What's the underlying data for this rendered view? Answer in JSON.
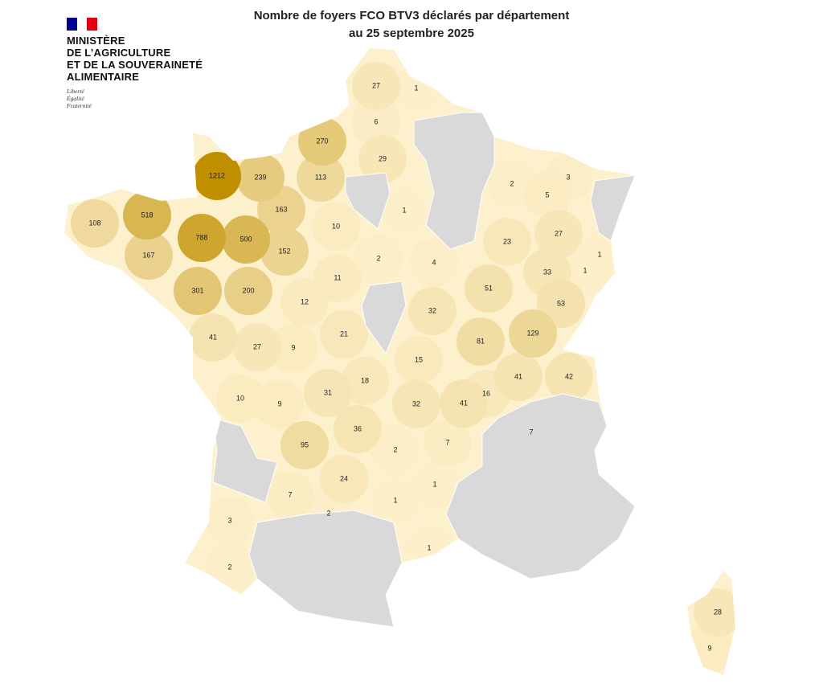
{
  "header": {
    "ministry": [
      "MINISTÈRE",
      "DE L’AGRICULTURE",
      "ET DE LA SOUVERAINETÉ",
      "ALIMENTAIRE"
    ],
    "motto": [
      "Liberté",
      "Égalité",
      "Fraternité"
    ]
  },
  "title": [
    "Nombre de foyers FCO BTV3 déclarés par département",
    "au 25 septembre 2025"
  ],
  "departments": [
    27,
    1,
    6,
    270,
    29,
    1212,
    239,
    113,
    2,
    3,
    5,
    518,
    163,
    1,
    108,
    10,
    27,
    788,
    500,
    23,
    167,
    152,
    2,
    4,
    1,
    33,
    1,
    11,
    51,
    301,
    200,
    12,
    53,
    32,
    41,
    27,
    9,
    21,
    81,
    129,
    15,
    18,
    41,
    42,
    10,
    9,
    31,
    32,
    41,
    16,
    7,
    36,
    95,
    2,
    7,
    24,
    1,
    7,
    1,
    2,
    3,
    1,
    2,
    28,
    9
  ]
}
